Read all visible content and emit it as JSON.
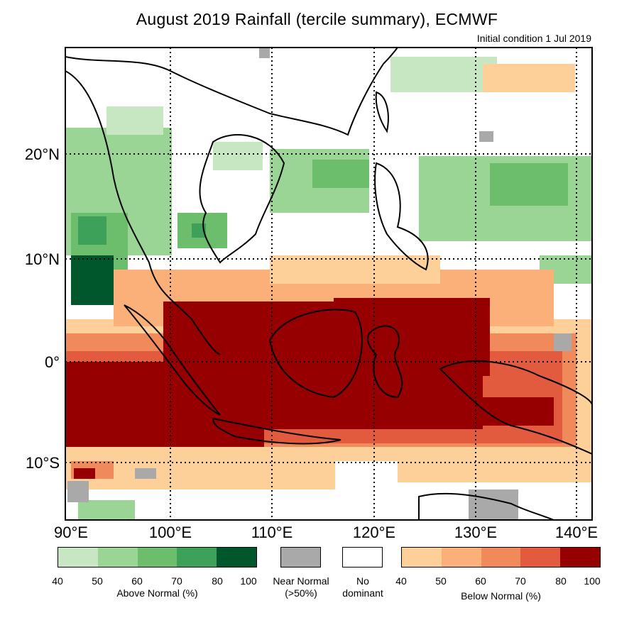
{
  "title": "August 2019 Rainfall (tercile summary), ECMWF",
  "subtitle": "Initial condition 1 Jul 2019",
  "map": {
    "lon_range": [
      90,
      142
    ],
    "lat_range": [
      -15,
      30
    ],
    "lat_labels": [
      "20°N",
      "10°N",
      "0°",
      "10°S"
    ],
    "lat_values": [
      20,
      10,
      0,
      -10
    ],
    "lon_labels": [
      "90°E",
      "100°E",
      "110°E",
      "120°E",
      "130°E",
      "140°E"
    ],
    "lon_values": [
      90,
      100,
      110,
      120,
      130,
      140
    ],
    "gridlines": "dotted",
    "frame_color": "#000000"
  },
  "legend": {
    "above_normal": {
      "label": "Above Normal (%)",
      "ticks": [
        "40",
        "50",
        "60",
        "70",
        "80",
        "100"
      ],
      "colors": [
        "#c6e7c2",
        "#9ad595",
        "#6cbd6c",
        "#3ea15a",
        "#00572c"
      ]
    },
    "near_normal": {
      "label_line1": "Near Normal",
      "label_line2": "(>50%)",
      "color": "#a9a9a9"
    },
    "no_dominant": {
      "label_line1": "No",
      "label_line2": "dominant",
      "color": "#ffffff"
    },
    "below_normal": {
      "label": "Below Normal (%)",
      "ticks": [
        "40",
        "50",
        "60",
        "70",
        "80",
        "100"
      ],
      "colors": [
        "#fdd09a",
        "#fbb07a",
        "#f08a5a",
        "#e25b3f",
        "#960000"
      ]
    }
  }
}
